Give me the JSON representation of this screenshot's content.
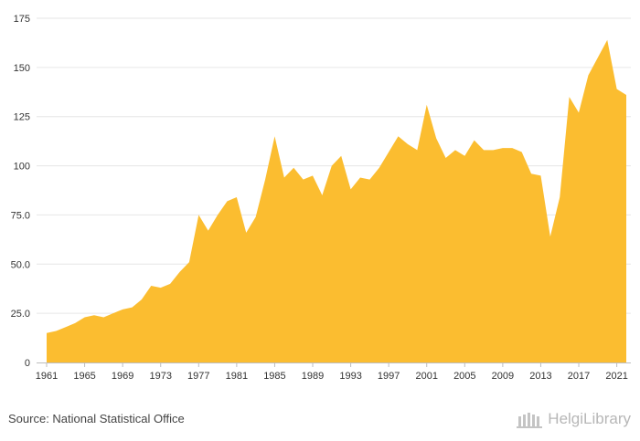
{
  "chart_data": {
    "type": "area",
    "title": "",
    "xlabel": "",
    "ylabel": "",
    "ylim": [
      0,
      175
    ],
    "xlim": [
      1961,
      2022
    ],
    "y_ticks": [
      "0",
      "25.0",
      "50.0",
      "75.0",
      "100",
      "125",
      "150",
      "175"
    ],
    "x_ticks": [
      "1961",
      "1965",
      "1969",
      "1973",
      "1977",
      "1981",
      "1985",
      "1989",
      "1993",
      "1997",
      "2001",
      "2005",
      "2009",
      "2013",
      "2017",
      "2021"
    ],
    "grid": true,
    "color": "#FBBD30",
    "x": [
      1961,
      1962,
      1963,
      1964,
      1965,
      1966,
      1967,
      1968,
      1969,
      1970,
      1971,
      1972,
      1973,
      1974,
      1975,
      1976,
      1977,
      1978,
      1979,
      1980,
      1981,
      1982,
      1983,
      1984,
      1985,
      1986,
      1987,
      1988,
      1989,
      1990,
      1991,
      1992,
      1993,
      1994,
      1995,
      1996,
      1997,
      1998,
      1999,
      2000,
      2001,
      2002,
      2003,
      2004,
      2005,
      2006,
      2007,
      2008,
      2009,
      2010,
      2011,
      2012,
      2013,
      2014,
      2015,
      2016,
      2017,
      2018,
      2019,
      2020,
      2021,
      2022
    ],
    "values": [
      15,
      16,
      18,
      20,
      23,
      24,
      23,
      25,
      27,
      28,
      32,
      39,
      38,
      40,
      46,
      51,
      75,
      67,
      75,
      82,
      84,
      66,
      74,
      93,
      115,
      94,
      99,
      93,
      95,
      85,
      100,
      105,
      88,
      94,
      93,
      99,
      107,
      115,
      111,
      108,
      131,
      114,
      104,
      108,
      105,
      113,
      108,
      108,
      109,
      109,
      107,
      96,
      95,
      64,
      84,
      135,
      127,
      146,
      155,
      164,
      139,
      136
    ]
  },
  "footer": {
    "source": "Source: National Statistical Office",
    "logo_text": "HelgiLibrary"
  }
}
